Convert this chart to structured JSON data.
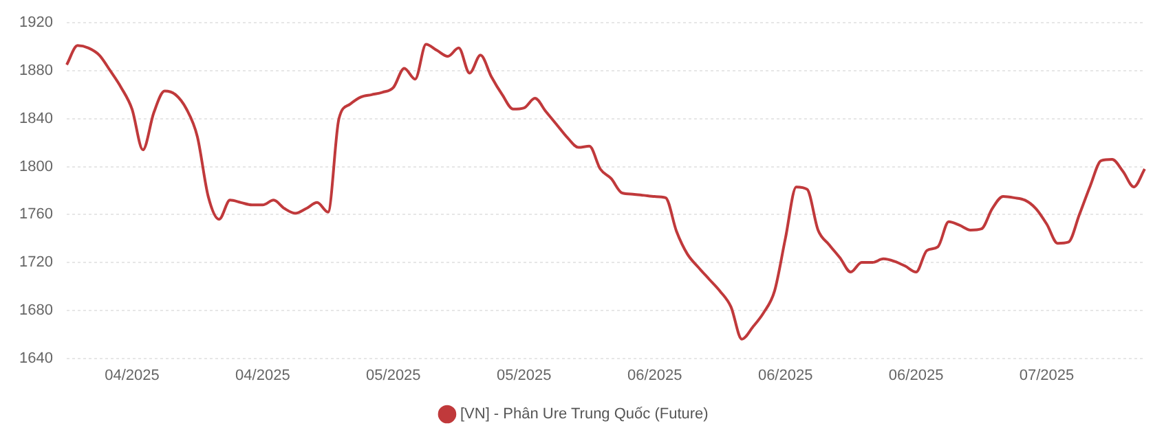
{
  "chart_data": {
    "type": "line",
    "categories": [
      null,
      null,
      null,
      null,
      null,
      null,
      "04/2025",
      null,
      null,
      null,
      null,
      null,
      null,
      null,
      null,
      null,
      null,
      null,
      "04/2025",
      null,
      null,
      null,
      null,
      null,
      null,
      null,
      null,
      null,
      null,
      null,
      "05/2025",
      null,
      null,
      null,
      null,
      null,
      null,
      null,
      null,
      null,
      null,
      null,
      "05/2025",
      null,
      null,
      null,
      null,
      null,
      null,
      null,
      null,
      null,
      null,
      null,
      "06/2025",
      null,
      null,
      null,
      null,
      null,
      null,
      null,
      null,
      null,
      null,
      null,
      "06/2025",
      null,
      null,
      null,
      null,
      null,
      null,
      null,
      null,
      null,
      null,
      null,
      "06/2025",
      null,
      null,
      null,
      null,
      null,
      null,
      null,
      null,
      null,
      null,
      null,
      "07/2025",
      null,
      null,
      null,
      null,
      null,
      null,
      null,
      null,
      null
    ],
    "series": [
      {
        "name": "[VN] - Phân Ure Trung Quốc (Future)",
        "color": "#c0393b",
        "values": [
          1885,
          1901,
          1899,
          1893,
          1880,
          1866,
          1848,
          1814,
          1845,
          1863,
          1860,
          1848,
          1825,
          1775,
          1756,
          1772,
          1770,
          1768,
          1768,
          1772,
          1765,
          1761,
          1765,
          1770,
          1762,
          1840,
          1852,
          1858,
          1860,
          1862,
          1866,
          1882,
          1873,
          1902,
          1897,
          1892,
          1899,
          1878,
          1893,
          1875,
          1860,
          1848,
          1849,
          1857,
          1846,
          1835,
          1824,
          1816,
          1817,
          1798,
          1790,
          1778,
          1777,
          1776,
          1775,
          1774,
          1746,
          1727,
          1716,
          1706,
          1696,
          1683,
          1656,
          1666,
          1678,
          1696,
          1740,
          1783,
          1781,
          1747,
          1735,
          1724,
          1712,
          1720,
          1720,
          1723,
          1721,
          1717,
          1712,
          1730,
          1733,
          1754,
          1751,
          1747,
          1748,
          1765,
          1775,
          1774,
          1772,
          1765,
          1752,
          1736,
          1737,
          1760,
          1784,
          1805,
          1806,
          1796,
          1783,
          1798
        ]
      }
    ],
    "ylim": [
      1640,
      1920
    ],
    "yticks": [
      1640,
      1680,
      1720,
      1760,
      1800,
      1840,
      1880,
      1920
    ],
    "grid": "y",
    "legend": "bottom",
    "marker": "none",
    "line_style": "solid"
  }
}
